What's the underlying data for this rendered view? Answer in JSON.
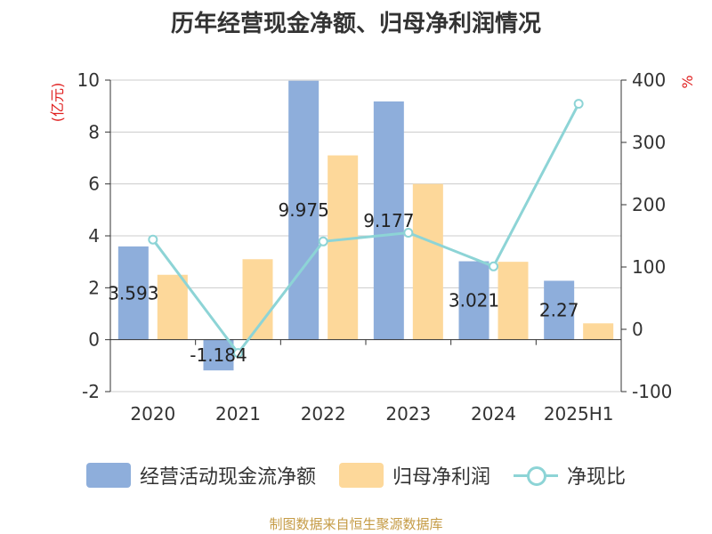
{
  "chart_data": {
    "type": "bar",
    "title": "历年经营现金净额、归母净利润情况",
    "categories": [
      "2020",
      "2021",
      "2022",
      "2023",
      "2024",
      "2025H1"
    ],
    "series": [
      {
        "name": "经营活动现金流净额",
        "type": "bar",
        "axis": "left",
        "color": "#8eaedb",
        "values": [
          3.593,
          -1.184,
          9.975,
          9.177,
          3.021,
          2.27
        ],
        "labels": [
          "3.593",
          "-1.184",
          "9.975",
          "9.177",
          "3.021",
          "2.27"
        ]
      },
      {
        "name": "归母净利润",
        "type": "bar",
        "axis": "left",
        "color": "#fdd89a",
        "values": [
          2.5,
          3.1,
          7.1,
          6.0,
          3.0,
          0.63
        ]
      },
      {
        "name": "净现比",
        "type": "line",
        "axis": "right",
        "color": "#8dd4d6",
        "values": [
          144,
          -38,
          141,
          155,
          101,
          362
        ]
      }
    ],
    "y_left": {
      "unit": "(亿元)",
      "min": -2,
      "max": 10,
      "ticks": [
        -2,
        0,
        2,
        4,
        6,
        8,
        10
      ]
    },
    "y_right": {
      "unit": "%",
      "min": -100,
      "max": 400,
      "ticks": [
        -100,
        0,
        100,
        200,
        300,
        400
      ]
    },
    "grid": true,
    "legend": "bottom"
  },
  "source": "制图数据来自恒生聚源数据库"
}
